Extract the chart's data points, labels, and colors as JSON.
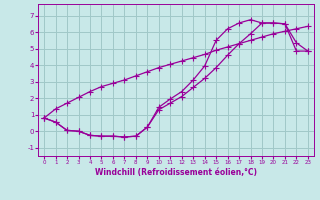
{
  "xlabel": "Windchill (Refroidissement éolien,°C)",
  "background_color": "#c8e8e8",
  "grid_color": "#a0c8c8",
  "line_color": "#990099",
  "xlim": [
    -0.5,
    23.5
  ],
  "ylim": [
    -1.5,
    7.7
  ],
  "xticks": [
    0,
    1,
    2,
    3,
    4,
    5,
    6,
    7,
    8,
    9,
    10,
    11,
    12,
    13,
    14,
    15,
    16,
    17,
    18,
    19,
    20,
    21,
    22,
    23
  ],
  "yticks": [
    -1,
    0,
    1,
    2,
    3,
    4,
    5,
    6,
    7
  ],
  "line1_x": [
    0,
    1,
    2,
    3,
    4,
    5,
    6,
    7,
    8,
    9,
    10,
    11,
    12,
    13,
    14,
    15,
    16,
    17,
    18,
    19,
    20,
    21,
    22,
    23
  ],
  "line1_y": [
    0.8,
    0.55,
    0.05,
    0.0,
    -0.25,
    -0.3,
    -0.3,
    -0.35,
    -0.3,
    0.25,
    1.3,
    1.7,
    2.1,
    2.65,
    3.2,
    3.85,
    4.6,
    5.3,
    5.9,
    6.55,
    6.55,
    6.5,
    4.85,
    4.85
  ],
  "line2_x": [
    0,
    1,
    2,
    3,
    4,
    5,
    6,
    7,
    8,
    9,
    10,
    11,
    12,
    13,
    14,
    15,
    16,
    17,
    18,
    19,
    20,
    21,
    22,
    23
  ],
  "line2_y": [
    0.8,
    0.55,
    0.05,
    0.0,
    -0.25,
    -0.3,
    -0.3,
    -0.35,
    -0.3,
    0.25,
    1.45,
    1.95,
    2.4,
    3.1,
    3.95,
    5.5,
    6.2,
    6.55,
    6.75,
    6.55,
    6.55,
    6.5,
    5.35,
    4.85
  ],
  "line3_x": [
    0,
    1,
    2,
    3,
    4,
    5,
    6,
    7,
    8,
    9,
    10,
    11,
    12,
    13,
    14,
    15,
    16,
    17,
    18,
    19,
    20,
    21,
    22,
    23
  ],
  "line3_y": [
    0.8,
    1.35,
    1.7,
    2.05,
    2.4,
    2.7,
    2.9,
    3.1,
    3.35,
    3.6,
    3.85,
    4.05,
    4.25,
    4.45,
    4.65,
    4.9,
    5.1,
    5.3,
    5.5,
    5.7,
    5.9,
    6.05,
    6.2,
    6.35
  ]
}
